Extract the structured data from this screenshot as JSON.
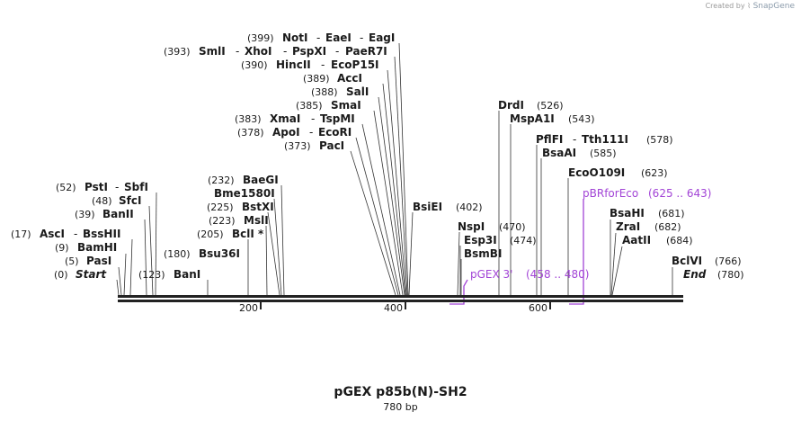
{
  "credit": {
    "prefix": "Created by",
    "brand": "SnapGene"
  },
  "map": {
    "title": "pGEX p85b(N)-SH2",
    "length_label": "780 bp"
  },
  "axis": {
    "start_bp": 0,
    "end_bp": 780,
    "tick_labels": [
      "200",
      "400",
      "600"
    ]
  },
  "sites": [
    {
      "id": "notI",
      "name": "NotI",
      "pos": "(399)"
    },
    {
      "id": "eaeI",
      "name": "EaeI"
    },
    {
      "id": "eagI",
      "name": "EagI"
    },
    {
      "id": "smlI",
      "name": "SmlI",
      "pos": "(393)"
    },
    {
      "id": "xhoI",
      "name": "XhoI"
    },
    {
      "id": "pspXI",
      "name": "PspXI"
    },
    {
      "id": "paeR7I",
      "name": "PaeR7I"
    },
    {
      "id": "hincII",
      "name": "HincII",
      "pos": "(390)"
    },
    {
      "id": "ecoP15I",
      "name": "EcoP15I"
    },
    {
      "id": "accI",
      "name": "AccI",
      "pos": "(389)"
    },
    {
      "id": "salI",
      "name": "SalI",
      "pos": "(388)"
    },
    {
      "id": "smaI",
      "name": "SmaI",
      "pos": "(385)"
    },
    {
      "id": "xmaI",
      "name": "XmaI",
      "pos": "(383)"
    },
    {
      "id": "tspMI",
      "name": "TspMI"
    },
    {
      "id": "apoI",
      "name": "ApoI",
      "pos": "(378)"
    },
    {
      "id": "ecoRI",
      "name": "EcoRI"
    },
    {
      "id": "pacI",
      "name": "PacI",
      "pos": "(373)"
    },
    {
      "id": "baeGI",
      "name": "BaeGI",
      "pos": "(232)"
    },
    {
      "id": "bme1580I",
      "name": "Bme1580I"
    },
    {
      "id": "bstXI",
      "name": "BstXI",
      "pos": "(225)"
    },
    {
      "id": "mslI",
      "name": "MslI",
      "pos": "(223)"
    },
    {
      "id": "bclI",
      "name": "BclI *",
      "pos": "(205)"
    },
    {
      "id": "bsu36I",
      "name": "Bsu36I",
      "pos": "(180)"
    },
    {
      "id": "banI",
      "name": "BanI",
      "pos": "(123)"
    },
    {
      "id": "pstI",
      "name": "PstI",
      "pos": "(52)"
    },
    {
      "id": "sbfI",
      "name": "SbfI"
    },
    {
      "id": "sfcI",
      "name": "SfcI",
      "pos": "(48)"
    },
    {
      "id": "banII",
      "name": "BanII",
      "pos": "(39)"
    },
    {
      "id": "ascI",
      "name": "AscI",
      "pos": "(17)"
    },
    {
      "id": "bssHII",
      "name": "BssHII"
    },
    {
      "id": "bamHI",
      "name": "BamHI",
      "pos": "(9)"
    },
    {
      "id": "pasI",
      "name": "PasI",
      "pos": "(5)"
    },
    {
      "id": "start",
      "name": "Start",
      "pos": "(0)"
    },
    {
      "id": "bsiEI",
      "name": "BsiEI",
      "pos": "(402)"
    },
    {
      "id": "drdI",
      "name": "DrdI",
      "pos": "(526)"
    },
    {
      "id": "mspA1I",
      "name": "MspA1I",
      "pos": "(543)"
    },
    {
      "id": "pflFI",
      "name": "PflFI"
    },
    {
      "id": "tth111I",
      "name": "Tth111I",
      "pos": "(578)"
    },
    {
      "id": "bsaAI",
      "name": "BsaAI",
      "pos": "(585)"
    },
    {
      "id": "ecoO109I",
      "name": "EcoO109I",
      "pos": "(623)"
    },
    {
      "id": "nspI",
      "name": "NspI",
      "pos": "(470)"
    },
    {
      "id": "esp3I",
      "name": "Esp3I",
      "pos": "(474)"
    },
    {
      "id": "bsmBI",
      "name": "BsmBI"
    },
    {
      "id": "bsaHI",
      "name": "BsaHI",
      "pos": "(681)"
    },
    {
      "id": "zraI",
      "name": "ZraI",
      "pos": "(682)"
    },
    {
      "id": "aatII",
      "name": "AatII",
      "pos": "(684)"
    },
    {
      "id": "bclVI",
      "name": "BclVI",
      "pos": "(766)"
    },
    {
      "id": "end",
      "name": "End",
      "pos": "(780)"
    }
  ],
  "primers": [
    {
      "id": "pGEX3",
      "name": "pGEX 3'",
      "range": "(458 .. 480)",
      "color": "#a244d6"
    },
    {
      "id": "pBRforEco",
      "name": "pBRforEco",
      "range": "(625 .. 643)",
      "color": "#a244d6"
    }
  ]
}
